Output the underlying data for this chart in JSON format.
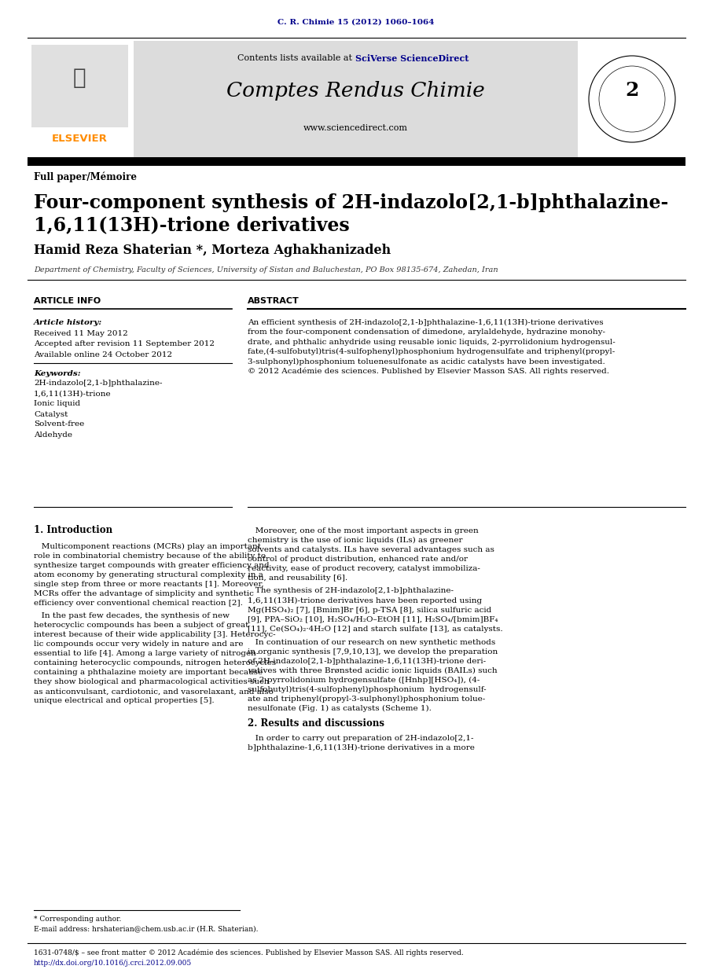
{
  "journal_ref": "C. R. Chimie 15 (2012) 1060–1064",
  "journal_ref_color": "#00008B",
  "header_bg": "#DCDCDC",
  "contents_text": "Contents lists available at ",
  "sciverse_text": "SciVerse ScienceDirect",
  "sciverse_color": "#00008B",
  "journal_title": "Comptes Rendus Chimie",
  "website": "www.sciencedirect.com",
  "full_paper_label": "Full paper/Mémoire",
  "article_title_line1": "Four-component synthesis of 2H-indazolo[2,1-b]phthalazine-",
  "article_title_line2": "1,6,11(13H)-trione derivatives",
  "authors": "Hamid Reza Shaterian *, Morteza Aghakhanizadeh",
  "affiliation": "Department of Chemistry, Faculty of Sciences, University of Sistan and Baluchestan, PO Box 98135-674, Zahedan, Iran",
  "article_info_title": "ARTICLE INFO",
  "abstract_title": "ABSTRACT",
  "article_history_label": "Article history:",
  "received": "Received 11 May 2012",
  "accepted": "Accepted after revision 11 September 2012",
  "available": "Available online 24 October 2012",
  "keywords_label": "Keywords:",
  "keywords": [
    "2H-indazolo[2,1-b]phthalazine-",
    "1,6,11(13H)-trione",
    "Ionic liquid",
    "Catalyst",
    "Solvent-free",
    "Aldehyde"
  ],
  "abstract_lines": [
    "An efficient synthesis of 2H-indazolo[2,1-b]phthalazine-1,6,11(13H)-trione derivatives",
    "from the four-component condensation of dimedone, arylaldehyde, hydrazine monohy-",
    "drate, and phthalic anhydride using reusable ionic liquids, 2-pyrrolidonium hydrogensul-",
    "fate,(4-sulfobutyl)tris(4-sulfophenyl)phosphonium hydrogensulfate and triphenyl(propyl-",
    "3-sulphonyl)phosphonium toluenesulfonate as acidic catalysts have been investigated.",
    "© 2012 Académie des sciences. Published by Elsevier Masson SAS. All rights reserved."
  ],
  "intro_title": "1. Introduction",
  "intro_p1": [
    "   Multicomponent reactions (MCRs) play an important",
    "role in combinatorial chemistry because of the ability to",
    "synthesize target compounds with greater efficiency and",
    "atom economy by generating structural complexity in a",
    "single step from three or more reactants [1]. Moreover,",
    "MCRs offer the advantage of simplicity and synthetic",
    "efficiency over conventional chemical reaction [2]."
  ],
  "intro_p2": [
    "   In the past few decades, the synthesis of new",
    "heterocyclic compounds has been a subject of great",
    "interest because of their wide applicability [3]. Heterocyc-",
    "lic compounds occur very widely in nature and are",
    "essential to life [4]. Among a large variety of nitrogen-",
    "containing heterocyclic compounds, nitrogen heterocycles",
    "containing a phthalazine moiety are important because",
    "they show biological and pharmacological activities such",
    "as anticonvulsant, cardiotonic, and vasorelaxant, and also",
    "unique electrical and optical properties [5]."
  ],
  "right_p1": [
    "   Moreover, one of the most important aspects in green",
    "chemistry is the use of ionic liquids (ILs) as greener",
    "solvents and catalysts. ILs have several advantages such as",
    "control of product distribution, enhanced rate and/or",
    "reactivity, ease of product recovery, catalyst immobiliza-",
    "tion, and reusability [6]."
  ],
  "right_p2": [
    "   The synthesis of 2H-indazolo[2,1-b]phthalazine-",
    "1,6,11(13H)-trione derivatives have been reported using",
    "Mg(HSO₄)₂ [7], [Bmim]Br [6], p-TSA [8], silica sulfuric acid",
    "[9], PPA–SiO₂ [10], H₂SO₄/H₂O–EtOH [11], H₂SO₄/[bmim]BF₄",
    "[11], Ce(SO₄)₂·4H₂O [12] and starch sulfate [13], as catalysts."
  ],
  "right_p3": [
    "   In continuation of our research on new synthetic methods",
    "in organic synthesis [7,9,10,13], we develop the preparation",
    "of 2H-indazolo[2,1-b]phthalazine-1,6,11(13H)-trione deri-",
    "vatives with three Brønsted acidic ionic liquids (BAILs) such",
    "as 2-pyrrolidonium hydrogensulfate ([Hnhp][HSO₄]), (4-",
    "sulfobutyl)tris(4-sulfophenyl)phosphonium  hydrogensulf-",
    "ate and triphenyl(propyl-3-sulphonyl)phosphonium tolue-",
    "nesulfonate (Fig. 1) as catalysts (Scheme 1)."
  ],
  "results_title": "2. Results and discussions",
  "results_p1": [
    "   In order to carry out preparation of 2H-indazolo[2,1-",
    "b]phthalazine-1,6,11(13H)-trione derivatives in a more"
  ],
  "footnote_star": "* Corresponding author.",
  "footnote_email": "E-mail address: hrshaterian@chem.usb.ac.ir (H.R. Shaterian).",
  "bottom_ref1": "1631-0748/$ – see front matter © 2012 Académie des sciences. Published by Elsevier Masson SAS. All rights reserved.",
  "bottom_ref2": "http://dx.doi.org/10.1016/j.crci.2012.09.005",
  "elsevier_color": "#FF8C00",
  "link_color": "#00008B"
}
